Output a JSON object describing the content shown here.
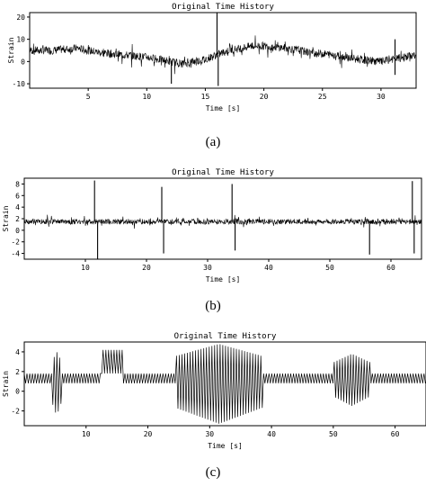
{
  "chart_data": [
    {
      "type": "line",
      "title": "Original Time History",
      "xlabel": "Time [s]",
      "ylabel": "Strain",
      "xlim": [
        0,
        33
      ],
      "ylim": [
        -12,
        22
      ],
      "xticks": [
        5,
        10,
        15,
        20,
        25,
        30
      ],
      "yticks": [
        -10,
        0,
        10,
        20
      ],
      "caption": "(a)",
      "series": [
        {
          "x": [
            0,
            2,
            4,
            6,
            8,
            10,
            11,
            12,
            13,
            14,
            15,
            16,
            17,
            18,
            19,
            20,
            22,
            24,
            26,
            28,
            30,
            31,
            32,
            33
          ],
          "y": [
            5,
            5,
            6,
            4,
            3,
            2,
            1,
            0,
            -1,
            0,
            1,
            3,
            5,
            6,
            7,
            7,
            6,
            4,
            3,
            1,
            0,
            1,
            2,
            3
          ],
          "peaks": [
            [
              16,
              23
            ],
            [
              16.1,
              -11
            ],
            [
              12.1,
              -10
            ],
            [
              31.2,
              10
            ],
            [
              31.2,
              -6
            ]
          ]
        }
      ]
    },
    {
      "type": "line",
      "title": "Original Time History",
      "xlabel": "Time [s]",
      "ylabel": "Strain",
      "xlim": [
        0,
        65
      ],
      "ylim": [
        -5,
        9
      ],
      "xticks": [
        10,
        20,
        30,
        40,
        50,
        60
      ],
      "yticks": [
        -4,
        -2,
        0,
        2,
        4,
        6,
        8
      ],
      "caption": "(b)",
      "series": [
        {
          "x": [
            0,
            65
          ],
          "y": [
            1.5,
            1.5
          ],
          "peaks": [
            [
              11.5,
              8.6
            ],
            [
              12,
              -5
            ],
            [
              22.5,
              7.5
            ],
            [
              22.8,
              -4
            ],
            [
              34,
              8
            ],
            [
              34.5,
              -3.5
            ],
            [
              56.5,
              -4.2
            ],
            [
              63.5,
              8.5
            ],
            [
              63.8,
              -4
            ]
          ]
        }
      ]
    },
    {
      "type": "line",
      "title": "Original Time History",
      "xlabel": "Time [s]",
      "ylabel": "Strain",
      "xlim": [
        0,
        65
      ],
      "ylim": [
        -3.5,
        5
      ],
      "xticks": [
        10,
        20,
        30,
        40,
        50,
        60
      ],
      "yticks": [
        -2,
        0,
        2,
        4
      ],
      "caption": "(c)",
      "series": [
        {
          "baseline": [
            0.8,
            1.8
          ],
          "segments": [
            {
              "x0": 4.5,
              "x1": 6,
              "min": -2.5,
              "max": 4
            },
            {
              "x0": 12.5,
              "x1": 16,
              "min": 1.8,
              "max": 4.2
            },
            {
              "x0": 24.5,
              "x1": 38.5,
              "min": -3.3,
              "max": 4.8
            },
            {
              "x0": 50,
              "x1": 56,
              "min": -1.5,
              "max": 3.8
            }
          ]
        }
      ]
    }
  ]
}
